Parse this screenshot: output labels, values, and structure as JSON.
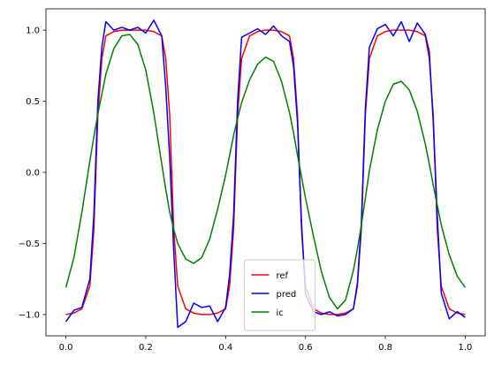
{
  "chart_data": {
    "type": "line",
    "title": "",
    "xlabel": "",
    "ylabel": "",
    "xlim": [
      -0.05,
      1.05
    ],
    "ylim": [
      -1.15,
      1.15
    ],
    "grid": false,
    "legend_position": "lower-center",
    "x_ticks": [
      0.0,
      0.2,
      0.4,
      0.6,
      0.8,
      1.0
    ],
    "x_tick_labels": [
      "0.0",
      "0.2",
      "0.4",
      "0.6",
      "0.8",
      "1.0"
    ],
    "y_ticks": [
      -1.0,
      -0.5,
      0.0,
      0.5,
      1.0
    ],
    "y_tick_labels": [
      "−1.0",
      "−0.5",
      "0.0",
      "0.5",
      "1.0"
    ],
    "x": [
      0.0,
      0.02,
      0.04,
      0.06,
      0.07,
      0.08,
      0.09,
      0.1,
      0.12,
      0.14,
      0.16,
      0.18,
      0.2,
      0.22,
      0.24,
      0.25,
      0.26,
      0.27,
      0.28,
      0.3,
      0.32,
      0.34,
      0.36,
      0.38,
      0.4,
      0.41,
      0.42,
      0.43,
      0.44,
      0.46,
      0.48,
      0.5,
      0.52,
      0.54,
      0.56,
      0.57,
      0.58,
      0.59,
      0.6,
      0.62,
      0.64,
      0.66,
      0.68,
      0.7,
      0.72,
      0.73,
      0.74,
      0.75,
      0.76,
      0.78,
      0.8,
      0.82,
      0.84,
      0.86,
      0.88,
      0.9,
      0.91,
      0.92,
      0.93,
      0.94,
      0.96,
      0.98,
      1.0
    ],
    "series": [
      {
        "name": "ref",
        "color": "#ff0000",
        "values": [
          -1.0,
          -0.99,
          -0.96,
          -0.8,
          -0.4,
          0.4,
          0.8,
          0.96,
          0.99,
          1.0,
          1.0,
          1.0,
          1.0,
          0.99,
          0.96,
          0.8,
          0.4,
          -0.4,
          -0.8,
          -0.96,
          -0.99,
          -1.0,
          -1.0,
          -0.99,
          -0.96,
          -0.8,
          -0.4,
          0.4,
          0.8,
          0.96,
          0.99,
          1.0,
          1.0,
          0.99,
          0.96,
          0.8,
          0.4,
          -0.4,
          -0.8,
          -0.96,
          -0.99,
          -1.0,
          -1.0,
          -0.99,
          -0.96,
          -0.8,
          -0.4,
          0.4,
          0.8,
          0.96,
          0.99,
          1.0,
          1.0,
          1.0,
          0.99,
          0.96,
          0.8,
          0.4,
          -0.4,
          -0.8,
          -0.96,
          -0.99,
          -1.0
        ]
      },
      {
        "name": "pred",
        "color": "#0000ff",
        "values": [
          -1.05,
          -0.97,
          -0.95,
          -0.75,
          -0.3,
          0.5,
          0.88,
          1.06,
          1.0,
          1.02,
          1.0,
          1.02,
          0.98,
          1.07,
          0.96,
          0.6,
          0.1,
          -0.55,
          -1.09,
          -1.05,
          -0.92,
          -0.95,
          -0.94,
          -1.05,
          -0.95,
          -0.72,
          -0.3,
          0.5,
          0.95,
          0.98,
          1.01,
          0.97,
          1.03,
          0.96,
          0.92,
          0.75,
          0.35,
          -0.35,
          -0.86,
          -0.98,
          -1.0,
          -0.98,
          -1.01,
          -1.0,
          -0.96,
          -0.78,
          -0.35,
          0.45,
          0.88,
          1.01,
          1.04,
          0.96,
          1.06,
          0.92,
          1.05,
          0.97,
          0.85,
          0.35,
          -0.3,
          -0.85,
          -1.03,
          -0.98,
          -1.02
        ]
      },
      {
        "name": "ic",
        "color": "#008000",
        "values": [
          -0.81,
          -0.6,
          -0.28,
          0.08,
          0.25,
          0.41,
          0.55,
          0.69,
          0.87,
          0.96,
          0.97,
          0.9,
          0.72,
          0.42,
          0.06,
          -0.12,
          -0.28,
          -0.4,
          -0.5,
          -0.61,
          -0.64,
          -0.6,
          -0.47,
          -0.26,
          -0.02,
          0.12,
          0.26,
          0.38,
          0.49,
          0.65,
          0.76,
          0.81,
          0.78,
          0.64,
          0.42,
          0.28,
          0.12,
          -0.03,
          -0.18,
          -0.45,
          -0.7,
          -0.88,
          -0.96,
          -0.9,
          -0.69,
          -0.54,
          -0.37,
          -0.18,
          0.01,
          0.3,
          0.5,
          0.62,
          0.64,
          0.58,
          0.43,
          0.2,
          0.06,
          -0.09,
          -0.23,
          -0.37,
          -0.58,
          -0.73,
          -0.81
        ]
      }
    ]
  }
}
